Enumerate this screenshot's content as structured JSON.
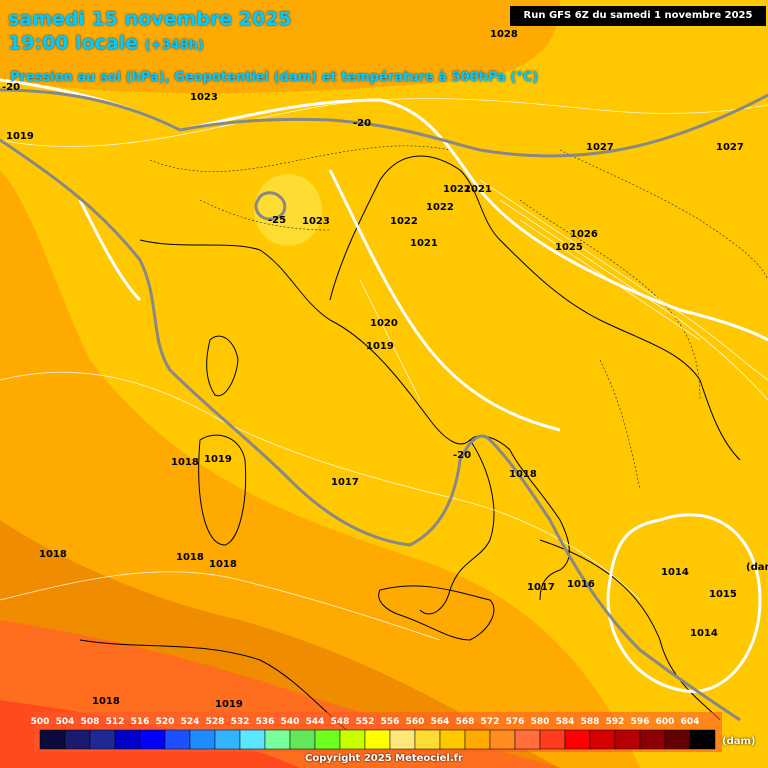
{
  "header": {
    "date_line": "samedi 15 novembre 2025",
    "time_line": "19:00 locale",
    "lead": "(+348h)",
    "product": "Pression au sol (hPa), Geopotentiel (dam) et température à 500hPa (°C)",
    "run": "Run GFS 6Z du samedi 1 novembre 2025"
  },
  "pressure_labels": [
    "1028",
    "1023",
    "1019",
    "1027",
    "1027",
    "1021",
    "1022",
    "1022",
    "1023",
    "1022",
    "1021",
    "1026",
    "1025",
    "1020",
    "1019",
    "1018",
    "1019",
    "1017",
    "1018",
    "1018",
    "1018",
    "1017",
    "1016",
    "1014",
    "1015",
    "1014",
    "1018",
    "1019",
    "(dam)"
  ],
  "temperature_labels": [
    "-20",
    "-20",
    "-25",
    "-20"
  ],
  "legend": {
    "values": [
      "500",
      "504",
      "508",
      "512",
      "516",
      "520",
      "524",
      "528",
      "532",
      "536",
      "540",
      "544",
      "548",
      "552",
      "556",
      "560",
      "564",
      "568",
      "572",
      "576",
      "580",
      "584",
      "588",
      "592",
      "596",
      "600",
      "604"
    ],
    "colors": [
      "#0a0a3c",
      "#1a1a6e",
      "#1e2896",
      "#0000c8",
      "#0000ff",
      "#1e50ff",
      "#1e8cff",
      "#32b4ff",
      "#5ae6ff",
      "#78ff9b",
      "#64e65a",
      "#6eff1e",
      "#c8ff00",
      "#ffff00",
      "#ffe678",
      "#ffdc32",
      "#ffc800",
      "#ffaa00",
      "#ff8c1e",
      "#ff6e3c",
      "#ff3c1e",
      "#ff0000",
      "#d70000",
      "#b40000",
      "#8c0000",
      "#640000",
      "#000000"
    ],
    "unit": "(dam)"
  },
  "copyright": "Copyright 2025 Meteociel.fr"
}
